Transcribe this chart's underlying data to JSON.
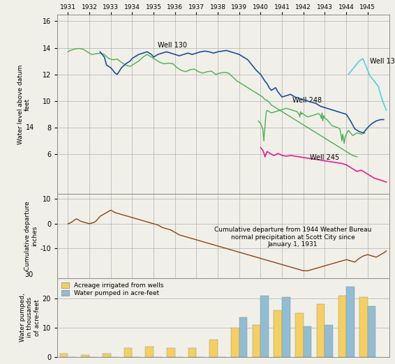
{
  "well_green_x": [
    1931.0,
    1931.08,
    1931.17,
    1931.25,
    1931.33,
    1931.42,
    1931.5,
    1931.58,
    1931.67,
    1931.75,
    1931.83,
    1931.92,
    1932.0,
    1932.08,
    1932.17,
    1932.25,
    1932.33,
    1932.42,
    1932.5,
    1932.58,
    1932.67,
    1932.75,
    1932.83,
    1932.92,
    1933.0,
    1933.08,
    1933.17,
    1933.25,
    1933.33,
    1933.42,
    1933.5,
    1933.58,
    1933.67,
    1933.75,
    1933.83,
    1933.92,
    1934.0,
    1934.08,
    1934.17,
    1934.25,
    1934.33,
    1934.42,
    1934.5,
    1934.58,
    1934.67,
    1934.75,
    1934.83,
    1934.92,
    1935.0,
    1935.08,
    1935.17,
    1935.25,
    1935.33,
    1935.42,
    1935.5,
    1935.58,
    1935.67,
    1935.75,
    1935.83,
    1935.92,
    1936.0,
    1936.08,
    1936.17,
    1936.25,
    1936.33,
    1936.42,
    1936.5,
    1936.58,
    1936.67,
    1936.75,
    1936.83,
    1936.92,
    1937.0,
    1937.08,
    1937.17,
    1937.25,
    1937.33,
    1937.42,
    1937.5,
    1937.58,
    1937.67,
    1937.75,
    1937.83,
    1937.92,
    1938.0,
    1938.08,
    1938.17,
    1938.25,
    1938.33,
    1938.42,
    1938.5,
    1938.58,
    1938.67,
    1938.75,
    1938.83,
    1938.92,
    1939.0,
    1939.08,
    1939.17,
    1939.25,
    1939.33,
    1939.42,
    1939.5,
    1939.58,
    1939.67,
    1939.75,
    1939.83,
    1939.92,
    1940.0,
    1940.08,
    1940.17,
    1940.25,
    1940.33,
    1940.42,
    1940.5,
    1940.58,
    1940.67,
    1940.75,
    1940.83,
    1940.92,
    1941.0,
    1941.08,
    1941.17,
    1941.25,
    1941.33,
    1941.42,
    1941.5,
    1941.58,
    1941.67,
    1941.75,
    1941.83,
    1941.92,
    1942.0,
    1942.08,
    1942.17,
    1942.25,
    1942.33,
    1942.42,
    1942.5,
    1942.58,
    1942.67,
    1942.75,
    1942.83,
    1942.92,
    1943.0,
    1943.08,
    1943.17,
    1943.25,
    1943.42,
    1943.67,
    1943.83,
    1944.0,
    1944.08,
    1944.17,
    1944.25
  ],
  "well_green_y": [
    13.7,
    13.75,
    13.8,
    13.85,
    13.9,
    13.95,
    14.0,
    13.9,
    13.85,
    13.8,
    13.7,
    13.6,
    13.5,
    13.55,
    13.6,
    13.65,
    13.7,
    13.65,
    13.6,
    13.5,
    13.4,
    13.3,
    13.2,
    13.1,
    13.0,
    13.1,
    13.15,
    13.2,
    13.15,
    13.0,
    12.9,
    12.8,
    12.7,
    12.6,
    12.5,
    12.6,
    12.7,
    12.8,
    12.9,
    13.0,
    13.1,
    13.2,
    13.3,
    13.4,
    13.5,
    13.6,
    13.4,
    13.2,
    13.1,
    13.0,
    12.9,
    12.8,
    12.7,
    12.75,
    12.8,
    12.85,
    12.9,
    12.85,
    12.8,
    12.7,
    12.6,
    12.5,
    12.4,
    12.3,
    12.2,
    12.15,
    12.1,
    12.2,
    12.3,
    12.35,
    12.4,
    12.3,
    12.2,
    12.1,
    12.0,
    12.05,
    12.1,
    12.15,
    12.2,
    12.25,
    12.3,
    12.2,
    12.1,
    12.0,
    12.05,
    12.1,
    12.15,
    12.2,
    12.15,
    12.1,
    12.0,
    11.9,
    11.8,
    11.7,
    11.6,
    11.5,
    11.4,
    11.3,
    11.2,
    11.1,
    11.0,
    10.9,
    10.8,
    10.7,
    10.6,
    10.5,
    10.4,
    10.3,
    10.2,
    10.1,
    10.0,
    9.9,
    9.8,
    9.7,
    9.6,
    9.5,
    9.4,
    9.3,
    9.2,
    9.1,
    9.0,
    8.9,
    8.8,
    8.7,
    8.6,
    8.5,
    8.4,
    8.3,
    8.2,
    8.1,
    8.0,
    7.9,
    7.8,
    7.7,
    7.6,
    7.5,
    7.4,
    7.3,
    7.2,
    7.1,
    7.0,
    6.9,
    6.8,
    6.7,
    6.6,
    6.5,
    6.4,
    6.3,
    6.2,
    6.1
  ],
  "well_green_x2": [
    1931.0,
    1931.1,
    1931.2,
    1931.3,
    1931.5,
    1931.7,
    1931.9,
    1932.1,
    1932.3,
    1932.5,
    1932.7,
    1932.9,
    1933.1,
    1933.3,
    1933.5,
    1933.7,
    1933.9,
    1934.1,
    1934.3,
    1934.5,
    1934.7,
    1934.9,
    1935.1,
    1935.3,
    1935.5,
    1935.7,
    1935.9,
    1936.1,
    1936.3,
    1936.5,
    1936.7,
    1936.9,
    1937.1,
    1937.3,
    1937.5,
    1937.7,
    1937.9,
    1938.1,
    1938.3,
    1938.5,
    1938.7,
    1938.9,
    1939.1,
    1939.3,
    1939.5,
    1939.7,
    1939.9,
    1940.0,
    1940.1,
    1940.2,
    1940.3,
    1940.4,
    1940.5,
    1940.7,
    1940.9,
    1941.1,
    1941.3,
    1941.5,
    1941.7,
    1941.9,
    1942.1,
    1942.3,
    1942.5,
    1942.7,
    1942.9,
    1943.1,
    1943.3,
    1943.5,
    1943.7,
    1943.9,
    1944.1,
    1944.3,
    1944.5
  ],
  "well_green_y2": [
    13.7,
    13.8,
    13.85,
    13.9,
    13.95,
    13.9,
    13.7,
    13.5,
    13.55,
    13.6,
    13.5,
    13.2,
    13.1,
    13.15,
    12.9,
    12.7,
    12.6,
    12.8,
    13.0,
    13.3,
    13.5,
    13.3,
    13.1,
    12.9,
    12.8,
    12.85,
    12.8,
    12.5,
    12.3,
    12.2,
    12.35,
    12.4,
    12.2,
    12.1,
    12.2,
    12.25,
    12.0,
    12.1,
    12.15,
    12.1,
    11.8,
    11.5,
    11.3,
    11.1,
    10.9,
    10.7,
    10.5,
    10.4,
    10.3,
    10.1,
    10.05,
    9.9,
    9.7,
    9.5,
    9.3,
    9.1,
    8.9,
    8.7,
    8.5,
    8.3,
    8.1,
    7.9,
    7.7,
    7.5,
    7.3,
    7.1,
    6.9,
    6.7,
    6.5,
    6.3,
    6.1,
    5.9,
    5.8
  ],
  "well131_x": [
    1944.1,
    1944.2,
    1944.3,
    1944.5,
    1944.6,
    1944.7,
    1944.75,
    1944.8,
    1944.85,
    1944.9,
    1944.95,
    1945.0,
    1945.05,
    1945.1,
    1945.15,
    1945.2,
    1945.3,
    1945.4,
    1945.5,
    1945.6,
    1945.7,
    1945.75,
    1945.8,
    1945.85,
    1945.87
  ],
  "well131_y": [
    12.0,
    12.2,
    12.4,
    12.8,
    13.0,
    13.1,
    13.2,
    13.1,
    12.9,
    12.7,
    12.5,
    12.3,
    12.1,
    11.9,
    11.8,
    11.7,
    11.5,
    11.3,
    11.1,
    10.5,
    10.0,
    9.8,
    9.6,
    9.4,
    9.3
  ],
  "well248_x": [
    1939.9,
    1940.0,
    1940.05,
    1940.1,
    1940.12,
    1940.15,
    1940.17,
    1940.2,
    1940.22,
    1940.25,
    1940.27,
    1940.3,
    1940.35,
    1940.4,
    1940.45,
    1940.5,
    1940.6,
    1940.7,
    1940.8,
    1940.9,
    1941.0,
    1941.1,
    1941.2,
    1941.3,
    1941.4,
    1941.5,
    1941.6,
    1941.7,
    1941.75,
    1941.8,
    1941.83,
    1941.87,
    1941.9,
    1941.95,
    1942.0,
    1942.1,
    1942.2,
    1942.3,
    1942.4,
    1942.5,
    1942.6,
    1942.7,
    1942.75,
    1942.8,
    1942.83,
    1942.87,
    1942.9,
    1942.95,
    1943.0,
    1943.1,
    1943.2,
    1943.3,
    1943.4,
    1943.5,
    1943.6,
    1943.7,
    1943.75,
    1943.8,
    1943.83,
    1943.87,
    1943.9,
    1943.95,
    1944.0,
    1944.1,
    1944.2,
    1944.3,
    1944.5,
    1944.7,
    1944.87
  ],
  "well248_y": [
    8.5,
    8.3,
    8.1,
    7.9,
    7.5,
    7.0,
    7.5,
    8.0,
    8.5,
    9.0,
    9.2,
    9.3,
    9.25,
    9.2,
    9.15,
    9.1,
    9.15,
    9.2,
    9.25,
    9.3,
    9.35,
    9.4,
    9.45,
    9.4,
    9.35,
    9.3,
    9.25,
    9.2,
    9.1,
    9.0,
    8.8,
    9.2,
    9.0,
    9.1,
    9.0,
    8.9,
    8.8,
    8.85,
    8.9,
    8.95,
    9.0,
    9.05,
    9.0,
    8.9,
    8.7,
    9.1,
    8.5,
    8.9,
    8.7,
    8.6,
    8.4,
    8.2,
    8.1,
    8.05,
    8.0,
    7.9,
    7.5,
    7.0,
    7.5,
    7.2,
    6.8,
    7.3,
    7.5,
    7.8,
    7.6,
    7.4,
    7.6,
    7.5,
    7.6
  ],
  "well130_x": [
    1932.5,
    1932.6,
    1932.7,
    1932.8,
    1933.0,
    1933.1,
    1933.2,
    1933.3,
    1933.5,
    1933.7,
    1933.9,
    1934.0,
    1934.2,
    1934.3,
    1934.5,
    1934.7,
    1934.9,
    1935.0,
    1935.2,
    1935.4,
    1935.6,
    1935.8,
    1936.0,
    1936.2,
    1936.4,
    1936.6,
    1936.8,
    1937.0,
    1937.2,
    1937.4,
    1937.6,
    1937.8,
    1938.0,
    1938.2,
    1938.4,
    1938.6,
    1938.8,
    1939.0,
    1939.2,
    1939.4,
    1939.6,
    1939.8,
    1940.0,
    1940.2,
    1940.3,
    1940.4,
    1940.5,
    1940.6,
    1940.7,
    1940.8,
    1940.9,
    1941.0,
    1941.2,
    1941.4,
    1941.5,
    1941.6,
    1941.8,
    1942.0,
    1942.2,
    1942.4,
    1942.6,
    1942.8,
    1943.0,
    1943.2,
    1943.4,
    1943.6,
    1943.8,
    1944.0,
    1944.2,
    1944.3,
    1944.4,
    1944.5,
    1944.6,
    1944.8,
    1945.0,
    1945.2,
    1945.4,
    1945.6,
    1945.75
  ],
  "well130_y": [
    13.7,
    13.5,
    13.3,
    12.7,
    12.5,
    12.3,
    12.1,
    12.0,
    12.5,
    12.8,
    13.0,
    13.2,
    13.4,
    13.5,
    13.6,
    13.7,
    13.5,
    13.3,
    13.5,
    13.6,
    13.7,
    13.6,
    13.5,
    13.4,
    13.5,
    13.6,
    13.5,
    13.6,
    13.7,
    13.75,
    13.7,
    13.6,
    13.7,
    13.75,
    13.8,
    13.7,
    13.6,
    13.5,
    13.3,
    13.1,
    12.7,
    12.3,
    12.0,
    11.5,
    11.3,
    11.0,
    10.8,
    10.9,
    11.0,
    10.7,
    10.5,
    10.3,
    10.4,
    10.5,
    10.4,
    10.3,
    10.2,
    10.1,
    10.0,
    9.9,
    9.8,
    9.6,
    9.5,
    9.4,
    9.3,
    9.2,
    9.1,
    9.0,
    8.5,
    8.2,
    7.9,
    7.8,
    7.7,
    7.6,
    8.0,
    8.3,
    8.5,
    8.6,
    8.6
  ],
  "well245_x": [
    1940.0,
    1940.1,
    1940.15,
    1940.2,
    1940.25,
    1940.3,
    1940.4,
    1940.5,
    1940.6,
    1940.7,
    1940.8,
    1940.9,
    1941.0,
    1941.2,
    1941.4,
    1941.6,
    1941.8,
    1942.0,
    1942.2,
    1942.4,
    1942.6,
    1942.8,
    1943.0,
    1943.2,
    1943.4,
    1943.6,
    1943.8,
    1944.0,
    1944.1,
    1944.2,
    1944.3,
    1944.4,
    1944.5,
    1944.6,
    1944.7,
    1944.8,
    1944.9,
    1945.0,
    1945.1,
    1945.2,
    1945.3,
    1945.5,
    1945.7,
    1945.85,
    1945.87
  ],
  "well245_y": [
    6.5,
    6.3,
    6.1,
    5.8,
    6.0,
    6.2,
    6.1,
    6.0,
    5.9,
    5.95,
    6.05,
    6.0,
    5.9,
    5.85,
    5.9,
    5.85,
    5.8,
    5.75,
    5.7,
    5.65,
    5.6,
    5.55,
    5.5,
    5.45,
    5.4,
    5.35,
    5.3,
    5.2,
    5.1,
    5.0,
    4.9,
    4.8,
    4.7,
    4.75,
    4.8,
    4.7,
    4.6,
    4.5,
    4.4,
    4.3,
    4.2,
    4.1,
    4.0,
    3.9,
    3.9
  ],
  "precip_x": [
    1931.0,
    1931.1,
    1931.2,
    1931.3,
    1931.4,
    1931.5,
    1931.6,
    1931.8,
    1932.0,
    1932.2,
    1932.3,
    1932.4,
    1932.5,
    1932.6,
    1932.8,
    1933.0,
    1933.1,
    1933.2,
    1933.4,
    1933.6,
    1933.8,
    1934.0,
    1934.2,
    1934.4,
    1934.6,
    1934.8,
    1935.0,
    1935.2,
    1935.4,
    1935.6,
    1935.8,
    1936.0,
    1936.2,
    1936.4,
    1936.6,
    1936.8,
    1937.0,
    1937.2,
    1937.4,
    1937.6,
    1937.8,
    1938.0,
    1938.2,
    1938.4,
    1938.6,
    1938.8,
    1939.0,
    1939.2,
    1939.4,
    1939.6,
    1939.8,
    1940.0,
    1940.2,
    1940.4,
    1940.6,
    1940.8,
    1941.0,
    1941.2,
    1941.4,
    1941.6,
    1941.8,
    1942.0,
    1942.2,
    1942.4,
    1942.6,
    1942.8,
    1943.0,
    1943.2,
    1943.4,
    1943.6,
    1943.8,
    1944.0,
    1944.2,
    1944.4,
    1944.6,
    1944.8,
    1945.0,
    1945.2,
    1945.4,
    1945.6,
    1945.8,
    1945.87
  ],
  "precip_y": [
    0.0,
    0.3,
    0.8,
    1.5,
    2.0,
    1.5,
    1.0,
    0.5,
    0.0,
    0.5,
    1.0,
    2.0,
    3.0,
    3.5,
    4.5,
    5.5,
    5.0,
    4.5,
    4.0,
    3.5,
    3.0,
    2.5,
    2.0,
    1.5,
    1.0,
    0.5,
    0.0,
    -0.5,
    -1.5,
    -2.0,
    -2.5,
    -3.5,
    -4.5,
    -5.0,
    -5.5,
    -6.0,
    -6.5,
    -7.0,
    -7.5,
    -8.0,
    -8.5,
    -9.0,
    -9.5,
    -10.0,
    -10.5,
    -11.0,
    -11.5,
    -12.0,
    -12.5,
    -13.0,
    -13.5,
    -14.0,
    -14.5,
    -15.0,
    -15.5,
    -16.0,
    -16.5,
    -17.0,
    -17.5,
    -18.0,
    -18.5,
    -19.0,
    -19.0,
    -18.5,
    -18.0,
    -17.5,
    -17.0,
    -16.5,
    -16.0,
    -15.5,
    -15.0,
    -14.5,
    -15.0,
    -15.5,
    -14.0,
    -13.0,
    -12.5,
    -13.0,
    -13.5,
    -12.5,
    -11.5,
    -11.0
  ],
  "bar_years": [
    1931,
    1932,
    1933,
    1934,
    1935,
    1936,
    1937,
    1938,
    1939,
    1940,
    1941,
    1942,
    1943,
    1944,
    1945
  ],
  "acreage_values": [
    1.0,
    0.5,
    1.2,
    3.0,
    3.5,
    3.0,
    3.0,
    6.0,
    10.0,
    11.0,
    16.0,
    15.0,
    18.0,
    21.0,
    20.5
  ],
  "pumped_values": [
    0.0,
    0.0,
    0.0,
    0.0,
    0.0,
    0.0,
    0.0,
    0.0,
    13.5,
    21.0,
    20.5,
    10.5,
    11.0,
    24.0,
    17.5
  ],
  "well131_color": "#4dd0e1",
  "well_green_color": "#4caf50",
  "well130_color": "#1a4fa0",
  "well248_color": "#4caf50",
  "well245_color": "#e91e8c",
  "precip_color": "#8b4513",
  "acreage_color": "#f5d060",
  "pumped_color": "#90bcd4",
  "background_color": "#f0f0e8",
  "grid_color": "#b0b0b0"
}
